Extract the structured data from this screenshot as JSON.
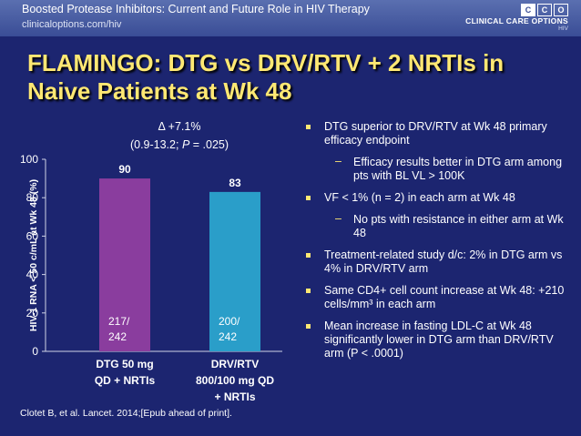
{
  "header": {
    "title": "Boosted Protease Inhibitors: Current and Future Role in HIV Therapy",
    "url": "clinicaloptions.com/hiv",
    "logo_letters": [
      "C",
      "C",
      "O"
    ],
    "logo_name": "CLINICAL CARE OPTIONS",
    "logo_sub": "HIV"
  },
  "slide": {
    "title_line1": "FLAMINGO: DTG vs DRV/RTV + 2 NRTIs in",
    "title_line2": "Naive Patients at Wk 48"
  },
  "chart_data": {
    "type": "bar",
    "categories": [
      "DTG 50 mg QD + NRTIs",
      "DRV/RTV 800/100 mg QD + NRTIs"
    ],
    "category_lines": [
      [
        "DTG 50 mg",
        "QD + NRTIs"
      ],
      [
        "DRV/RTV",
        "800/100 mg QD",
        "+ NRTIs"
      ]
    ],
    "values": [
      90,
      83
    ],
    "value_labels": [
      "90",
      "83"
    ],
    "counts": [
      [
        "217/",
        "242"
      ],
      [
        "200/",
        "242"
      ]
    ],
    "colors": [
      "#8a3d9e",
      "#2a9ec9"
    ],
    "ylabel": "HIV-1 RNA < 50 c/mL at Wk 48 (%)",
    "ylim": [
      0,
      100
    ],
    "yticks": [
      0,
      20,
      40,
      60,
      80,
      100
    ],
    "annotation_line1": "Δ +7.1%",
    "annotation_line2_prefix": "(0.9-13.2; ",
    "annotation_p": "P",
    "annotation_line2_suffix": " = .025)"
  },
  "bullets": [
    {
      "level": 1,
      "text": "DTG superior to DRV/RTV at Wk 48 primary efficacy endpoint"
    },
    {
      "level": 2,
      "text": "Efficacy results better in DTG arm among pts with BL VL > 100K"
    },
    {
      "level": 1,
      "text": "VF < 1% (n = 2) in each arm at Wk 48"
    },
    {
      "level": 2,
      "text": "No pts with resistance in either arm at Wk 48"
    },
    {
      "level": 1,
      "text": "Treatment-related study d/c: 2% in DTG arm vs 4% in DRV/RTV arm"
    },
    {
      "level": 1,
      "text": "Same CD4+ cell count increase at Wk 48: +210 cells/mm³ in each arm"
    },
    {
      "level": 1,
      "text": "Mean increase in fasting LDL-C at Wk 48 significantly lower in DTG arm than DRV/RTV arm (P < .0001)"
    }
  ],
  "citation": "Clotet B, et al. Lancet. 2014;[Epub ahead of print]."
}
